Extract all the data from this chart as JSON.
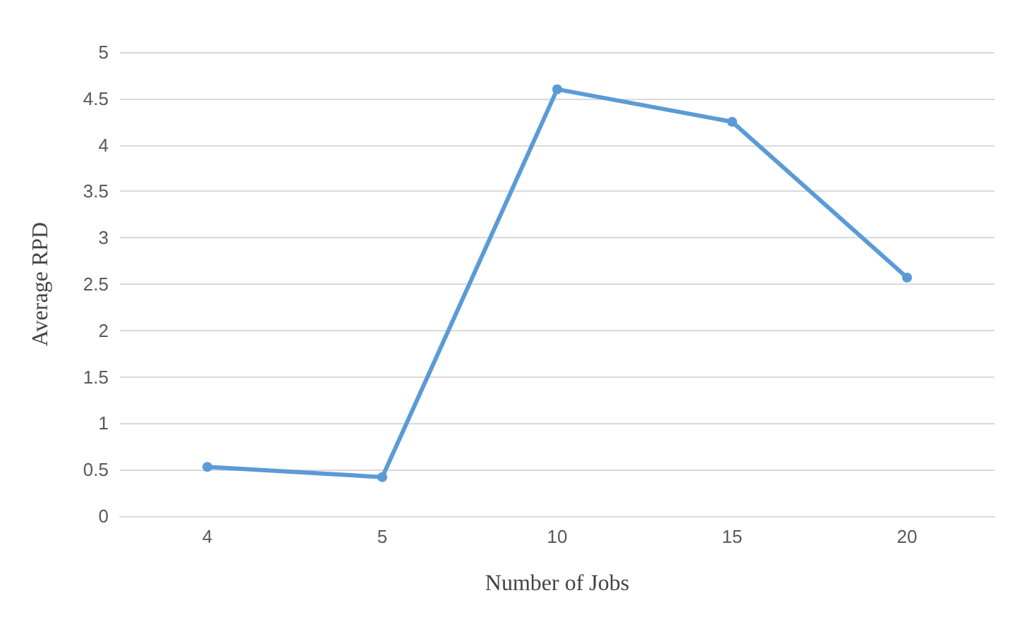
{
  "chart_data": {
    "type": "line",
    "xlabel": "Number of Jobs",
    "ylabel": "Average RPD",
    "categories": [
      "4",
      "5",
      "10",
      "15",
      "20"
    ],
    "series": [
      {
        "color": "#5b9bd5",
        "values": [
          0.53,
          0.42,
          4.6,
          4.25,
          2.57
        ]
      }
    ],
    "ylim": [
      0,
      5
    ],
    "yticks": [
      0,
      0.5,
      1,
      1.5,
      2,
      2.5,
      3,
      3.5,
      4,
      4.5,
      5
    ],
    "grid": "y",
    "marker": "circle",
    "line_style": "solid"
  }
}
